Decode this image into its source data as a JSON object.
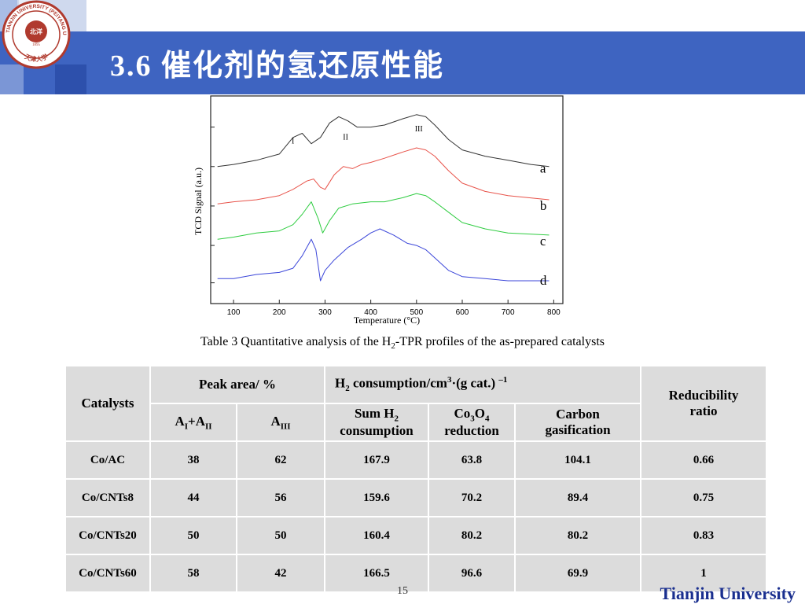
{
  "header": {
    "title": "3.6 催化剂的氢还原性能",
    "colors": {
      "band": "#3e64c1",
      "light_block": "#cfd9ee"
    }
  },
  "logo": {
    "name": "university-seal",
    "ring_text_top": "TIANJIN UNIVERSITY (PEIYANG UNIVERSITY)",
    "center_text": "北洋",
    "year": "1895",
    "bottom_text": "天津大学",
    "color": "#b03a2e"
  },
  "chart_data": {
    "type": "line",
    "xlabel": "Temperature (°C)",
    "ylabel": "TCD Signal (a.u.)",
    "xlim": [
      50,
      820
    ],
    "x_ticks": [
      100,
      200,
      300,
      400,
      500,
      600,
      700,
      800
    ],
    "x_tick_labels": [
      "100",
      "200",
      "300",
      "400",
      "500",
      "600",
      "700",
      "800"
    ],
    "ylim": [
      0,
      100
    ],
    "peak_labels": [
      {
        "text": "I",
        "x": 230,
        "y": 77
      },
      {
        "text": "II",
        "x": 345,
        "y": 79
      },
      {
        "text": "III",
        "x": 505,
        "y": 83
      }
    ],
    "series": [
      {
        "name": "a",
        "color": "#333333",
        "x": [
          65,
          100,
          150,
          200,
          230,
          250,
          270,
          290,
          310,
          330,
          350,
          370,
          400,
          430,
          470,
          500,
          520,
          540,
          570,
          600,
          650,
          700,
          750,
          790
        ],
        "y": [
          66,
          67,
          69,
          72,
          80,
          82,
          77,
          80,
          87,
          90,
          88,
          85,
          85,
          86,
          89,
          91,
          90,
          86,
          79,
          74,
          71,
          69,
          67,
          66
        ]
      },
      {
        "name": "b",
        "color": "#e8534a",
        "x": [
          65,
          100,
          150,
          200,
          230,
          260,
          275,
          290,
          300,
          320,
          340,
          360,
          380,
          400,
          430,
          470,
          500,
          520,
          540,
          570,
          600,
          650,
          700,
          790
        ],
        "y": [
          48,
          49,
          50,
          52,
          55,
          59,
          60,
          56,
          55,
          62,
          66,
          65,
          67,
          68,
          70,
          73,
          75,
          74,
          71,
          64,
          58,
          54,
          52,
          50
        ]
      },
      {
        "name": "c",
        "color": "#2ecc40",
        "x": [
          65,
          100,
          150,
          200,
          230,
          250,
          270,
          285,
          295,
          310,
          330,
          360,
          400,
          430,
          470,
          500,
          520,
          540,
          570,
          600,
          650,
          700,
          790
        ],
        "y": [
          31,
          32,
          34,
          35,
          38,
          43,
          49,
          41,
          34,
          40,
          46,
          48,
          49,
          49,
          51,
          53,
          52,
          49,
          44,
          39,
          36,
          34,
          33
        ]
      },
      {
        "name": "d",
        "color": "#3b46d9",
        "x": [
          65,
          100,
          150,
          200,
          230,
          250,
          270,
          280,
          290,
          300,
          320,
          350,
          380,
          400,
          420,
          450,
          480,
          500,
          520,
          540,
          570,
          600,
          650,
          700,
          790
        ],
        "y": [
          12,
          12,
          14,
          15,
          17,
          23,
          31,
          26,
          11,
          16,
          21,
          27,
          31,
          34,
          36,
          33,
          29,
          28,
          26,
          22,
          16,
          13,
          12,
          11,
          11
        ]
      }
    ],
    "series_labels": [
      "a",
      "b",
      "c",
      "d"
    ],
    "grid": false,
    "legend": "right-inline"
  },
  "caption": {
    "prefix": "Table 3 Quantitative analysis of the H",
    "sub": "2",
    "suffix": "-TPR profiles of the as-prepared catalysts"
  },
  "table": {
    "header": {
      "catalysts": "Catalysts",
      "peak_area": "Peak area/ %",
      "h2_prefix": "H",
      "h2_sub": "2",
      "h2_mid": " consumption/cm",
      "h2_sup": "3",
      "h2_suffix": "·(g cat.) ",
      "h2_sup2": "–1",
      "reducibility_line1": "Reducibility",
      "reducibility_line2": "ratio",
      "a1a2_a": "A",
      "a1a2_sub1": "I",
      "a1a2_plus": "+A",
      "a1a2_sub2": "II",
      "a3_a": "A",
      "a3_sub": "III",
      "sum_line1_prefix": "Sum H",
      "sum_line1_sub": "2",
      "sum_line2": "consumption",
      "co3o4_co": "Co",
      "co3o4_sub1": "3",
      "co3o4_o": "O",
      "co3o4_sub2": "4",
      "co3o4_line2": "reduction",
      "carbon_line1": "Carbon",
      "carbon_line2": "gasification"
    },
    "rows": [
      [
        "Co/AC",
        "38",
        "62",
        "167.9",
        "63.8",
        "104.1",
        "0.66"
      ],
      [
        "Co/CNTs8",
        "44",
        "56",
        "159.6",
        "70.2",
        "89.4",
        "0.75"
      ],
      [
        "Co/CNTs20",
        "50",
        "50",
        "160.4",
        "80.2",
        "80.2",
        "0.83"
      ],
      [
        "Co/CNTs60",
        "58",
        "42",
        "166.5",
        "96.6",
        "69.9",
        "1"
      ]
    ]
  },
  "footer": {
    "brand": "Tianjin University",
    "page": "15"
  }
}
